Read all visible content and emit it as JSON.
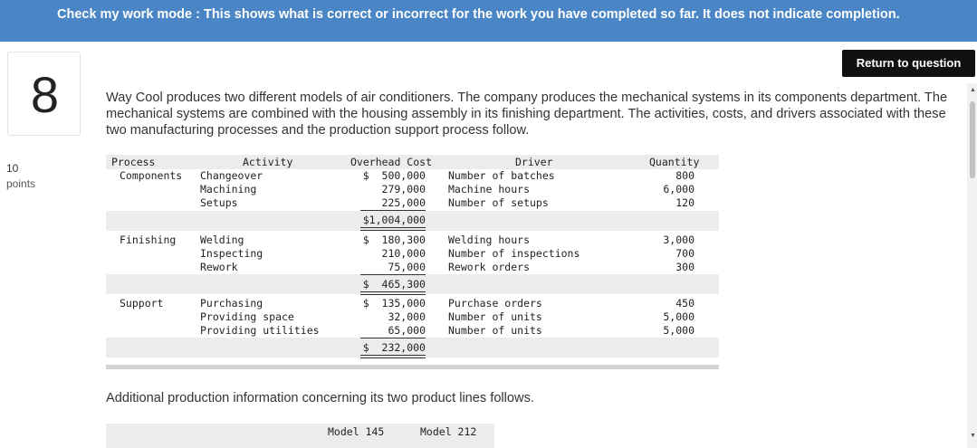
{
  "banner": {
    "text": "Check my work mode : This shows what is correct or incorrect for the work you have completed so far. It does not indicate completion."
  },
  "question": {
    "number": "8",
    "points_value": "10",
    "points_label": "points",
    "return_label": "Return to question"
  },
  "intro": "Way Cool produces two different models of air conditioners. The company produces the mechanical systems in its components department. The mechanical systems are combined with the housing assembly in its finishing department. The activities, costs, and drivers associated with these two manufacturing processes and the production support process follow.",
  "table": {
    "headers": {
      "process": "Process",
      "activity": "Activity",
      "cost": "Overhead Cost",
      "driver": "Driver",
      "quantity": "Quantity"
    },
    "groups": [
      {
        "process": "Components",
        "rows": [
          {
            "activity": "Changeover",
            "cost": "$  500,000",
            "driver": "Number of batches",
            "quantity": "800"
          },
          {
            "activity": "Machining",
            "cost": "279,000",
            "driver": "Machine hours",
            "quantity": "6,000"
          },
          {
            "activity": "Setups",
            "cost": "225,000",
            "driver": "Number of setups",
            "quantity": "120"
          }
        ],
        "total": "$1,004,000"
      },
      {
        "process": "Finishing",
        "rows": [
          {
            "activity": "Welding",
            "cost": "$  180,300",
            "driver": "Welding hours",
            "quantity": "3,000"
          },
          {
            "activity": "Inspecting",
            "cost": "210,000",
            "driver": "Number of inspections",
            "quantity": "700"
          },
          {
            "activity": "Rework",
            "cost": "75,000",
            "driver": "Rework orders",
            "quantity": "300"
          }
        ],
        "total": "$  465,300"
      },
      {
        "process": "Support",
        "rows": [
          {
            "activity": "Purchasing",
            "cost": "$  135,000",
            "driver": "Purchase orders",
            "quantity": "450"
          },
          {
            "activity": "Providing space",
            "cost": "32,000",
            "driver": "Number of units",
            "quantity": "5,000"
          },
          {
            "activity": "Providing utilities",
            "cost": "65,000",
            "driver": "Number of units",
            "quantity": "5,000"
          }
        ],
        "total": "$  232,000"
      }
    ]
  },
  "additional": "Additional production information concerning its two product lines follows.",
  "table2": {
    "headers": [
      "Model 145",
      "Model 212"
    ]
  }
}
